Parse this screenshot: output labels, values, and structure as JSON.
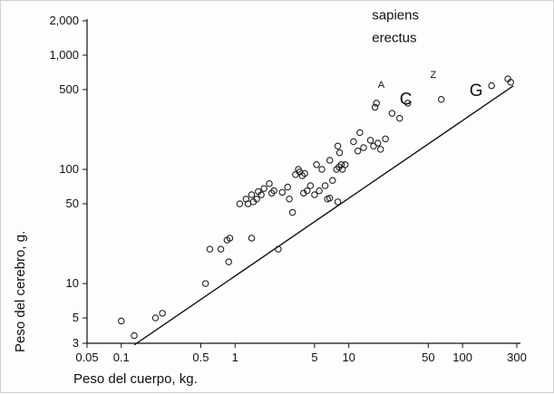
{
  "chart_data": {
    "type": "scatter",
    "xlabel": "Peso del cuerpo, kg.",
    "ylabel": "Peso del cerebro, g.",
    "x_scale": "log",
    "y_scale": "log",
    "xlim": [
      0.05,
      300
    ],
    "ylim": [
      3,
      2000
    ],
    "xticks": [
      0.05,
      0.1,
      0.5,
      1,
      5,
      10,
      50,
      100,
      300
    ],
    "xtick_labels": [
      "0.05",
      "0.1",
      "0.5",
      "1",
      "5",
      "10",
      "50",
      "100",
      "300"
    ],
    "yticks": [
      3,
      5,
      10,
      50,
      100,
      500,
      1000,
      2000
    ],
    "ytick_labels": [
      "3",
      "5",
      "10",
      "50",
      "100",
      "500",
      "1,000",
      "2,000"
    ],
    "grid": false,
    "points": [
      [
        0.1,
        4.7
      ],
      [
        0.13,
        3.5
      ],
      [
        0.2,
        5.0
      ],
      [
        0.23,
        5.5
      ],
      [
        0.55,
        10.0
      ],
      [
        0.6,
        20.0
      ],
      [
        0.75,
        20.0
      ],
      [
        0.85,
        24.0
      ],
      [
        0.9,
        25.0
      ],
      [
        0.88,
        15.5
      ],
      [
        1.4,
        25.0
      ],
      [
        2.4,
        20.0
      ],
      [
        1.1,
        50.0
      ],
      [
        1.25,
        55.0
      ],
      [
        1.3,
        50.0
      ],
      [
        1.4,
        60.0
      ],
      [
        1.45,
        52.0
      ],
      [
        1.55,
        55.0
      ],
      [
        1.6,
        64.0
      ],
      [
        1.7,
        60.0
      ],
      [
        1.8,
        68.0
      ],
      [
        2.0,
        75.0
      ],
      [
        2.1,
        62.0
      ],
      [
        2.2,
        65.0
      ],
      [
        2.6,
        63.0
      ],
      [
        2.9,
        70.0
      ],
      [
        3.0,
        55.0
      ],
      [
        3.2,
        42.0
      ],
      [
        3.4,
        90.0
      ],
      [
        3.6,
        100.0
      ],
      [
        3.9,
        88.0
      ],
      [
        4.0,
        62.0
      ],
      [
        4.3,
        65.0
      ],
      [
        4.6,
        72.0
      ],
      [
        5.0,
        60.0
      ],
      [
        5.5,
        65.0
      ],
      [
        3.7,
        95.0
      ],
      [
        4.1,
        92.0
      ],
      [
        5.2,
        110.0
      ],
      [
        5.8,
        100.0
      ],
      [
        6.2,
        72.0
      ],
      [
        6.8,
        120.0
      ],
      [
        7.2,
        80.0
      ],
      [
        7.8,
        100.0
      ],
      [
        8.2,
        105.0
      ],
      [
        8.6,
        110.0
      ],
      [
        8.0,
        160.0
      ],
      [
        8.3,
        140.0
      ],
      [
        8.8,
        100.0
      ],
      [
        9.3,
        110.0
      ],
      [
        11.0,
        175.0
      ],
      [
        12.0,
        145.0
      ],
      [
        12.5,
        210.0
      ],
      [
        13.5,
        155.0
      ],
      [
        15.5,
        180.0
      ],
      [
        16.5,
        160.0
      ],
      [
        18.0,
        170.0
      ],
      [
        19.0,
        150.0
      ],
      [
        21.0,
        185.0
      ],
      [
        6.5,
        55.0
      ],
      [
        6.8,
        56.0
      ],
      [
        8.0,
        52.0
      ],
      [
        17.0,
        350.0
      ],
      [
        17.5,
        380.0
      ],
      [
        24.0,
        310.0
      ],
      [
        28.0,
        280.0
      ],
      [
        33.0,
        380.0
      ],
      [
        65.0,
        410.0
      ],
      [
        180.0,
        540.0
      ],
      [
        250.0,
        620.0
      ],
      [
        265.0,
        580.0
      ]
    ],
    "fit_line": {
      "x": [
        0.13,
        280
      ],
      "y": [
        2.9,
        540
      ]
    },
    "annotations": [
      {
        "text": "A",
        "x": 18,
        "y": 520,
        "size": "small"
      },
      {
        "text": "C",
        "x": 28,
        "y": 370,
        "size": "large"
      },
      {
        "text": "Z",
        "x": 52,
        "y": 630,
        "size": "small"
      },
      {
        "text": "G",
        "x": 115,
        "y": 440,
        "size": "large"
      },
      {
        "text": "sapiens",
        "x": 16,
        "y": 2050,
        "size": "normal"
      },
      {
        "text": "erectus",
        "x": 16,
        "y": 1300,
        "size": "normal"
      }
    ]
  }
}
